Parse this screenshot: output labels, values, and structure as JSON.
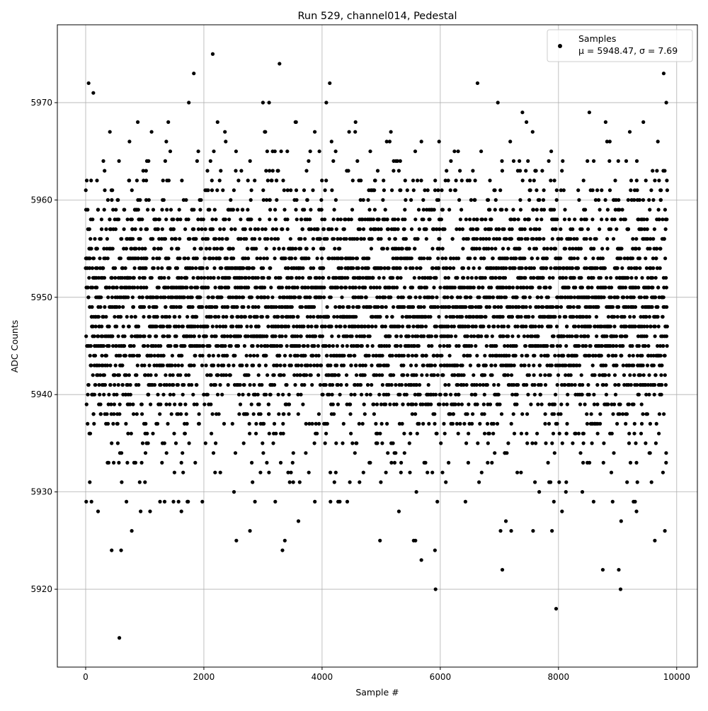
{
  "chart_data": {
    "type": "scatter",
    "title": "Run 529, channel014, Pedestal",
    "xlabel": "Sample #",
    "ylabel": "ADC Counts",
    "xlim": [
      -479,
      10350
    ],
    "ylim": [
      5912,
      5978
    ],
    "xticks": [
      0,
      2000,
      4000,
      6000,
      8000,
      10000
    ],
    "yticks": [
      5920,
      5930,
      5940,
      5950,
      5960,
      5970
    ],
    "grid": true,
    "legend_position": "top-right",
    "marker_color": "#000000",
    "series": [
      {
        "name": "Samples",
        "stats_label": "μ = 5948.47, σ = 7.69",
        "mean": 5948.47,
        "sigma": 7.69,
        "sample_range": [
          0,
          9840
        ],
        "outlier_points": [
          [
            570,
            5915
          ],
          [
            50,
            5972
          ],
          [
            130,
            5971
          ],
          [
            1830,
            5973
          ],
          [
            2150,
            5975
          ],
          [
            3280,
            5974
          ],
          [
            4130,
            5972
          ],
          [
            6630,
            5972
          ],
          [
            9780,
            5973
          ],
          [
            7960,
            5918
          ],
          [
            5920,
            5920
          ],
          [
            9050,
            5920
          ],
          [
            7050,
            5922
          ],
          [
            8750,
            5922
          ],
          [
            9020,
            5922
          ],
          [
            440,
            5924
          ],
          [
            600,
            5924
          ],
          [
            3330,
            5924
          ],
          [
            5910,
            5924
          ],
          [
            5680,
            5923
          ],
          [
            2550,
            5925
          ],
          [
            3370,
            5925
          ],
          [
            4980,
            5925
          ],
          [
            5550,
            5925
          ],
          [
            5580,
            5925
          ],
          [
            9630,
            5925
          ],
          [
            780,
            5926
          ],
          [
            2780,
            5926
          ],
          [
            7020,
            5926
          ],
          [
            7200,
            5926
          ],
          [
            7570,
            5926
          ],
          [
            7890,
            5926
          ],
          [
            9800,
            5926
          ],
          [
            3600,
            5927
          ],
          [
            9060,
            5927
          ],
          [
            7110,
            5927
          ],
          [
            210,
            5928
          ],
          [
            930,
            5928
          ],
          [
            1090,
            5928
          ],
          [
            1620,
            5928
          ],
          [
            5300,
            5928
          ],
          [
            8060,
            5928
          ],
          [
            9320,
            5928
          ]
        ]
      }
    ]
  }
}
